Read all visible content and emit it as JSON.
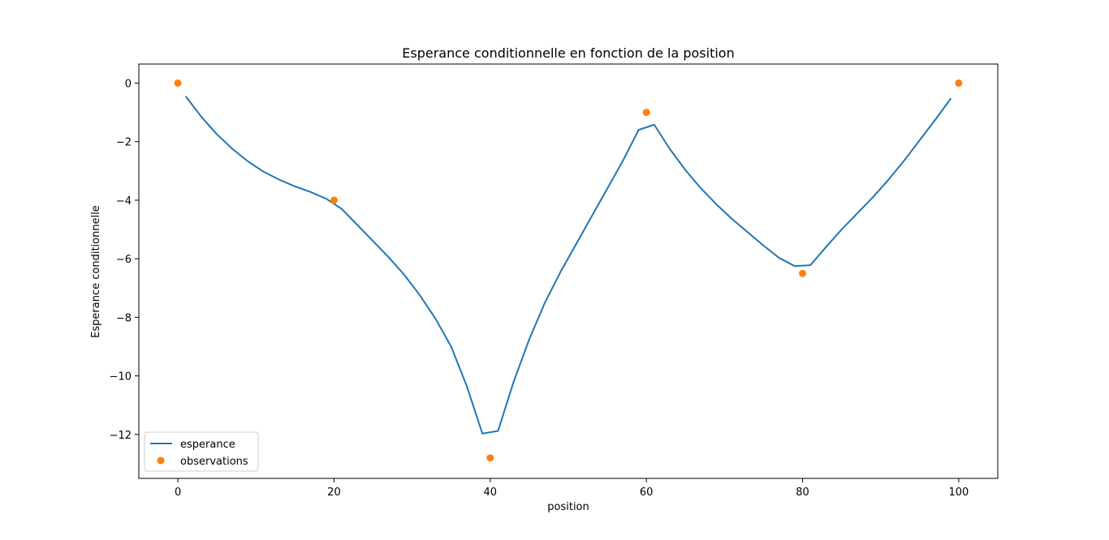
{
  "chart_data": {
    "type": "line",
    "title": "Esperance conditionnelle en fonction de la position",
    "xlabel": "position",
    "ylabel": "Esperance conditionnelle",
    "xlim": [
      -5,
      105
    ],
    "ylim": [
      -13.5,
      0.65
    ],
    "xticks": [
      0,
      20,
      40,
      60,
      80,
      100
    ],
    "yticks": [
      0,
      -2,
      -4,
      -6,
      -8,
      -10,
      -12
    ],
    "xtick_labels": [
      "0",
      "20",
      "40",
      "60",
      "80",
      "100"
    ],
    "ytick_labels": [
      "0",
      "−2",
      "−4",
      "−6",
      "−8",
      "−10",
      "−12"
    ],
    "grid": false,
    "legend_position": "lower-left",
    "colors": {
      "esperance": "#1f77b4",
      "observations": "#ff7f0e"
    },
    "series": [
      {
        "name": "esperance",
        "style": "line",
        "points": [
          [
            1,
            -0.45
          ],
          [
            3,
            -1.15
          ],
          [
            5,
            -1.75
          ],
          [
            7,
            -2.25
          ],
          [
            9,
            -2.68
          ],
          [
            11,
            -3.03
          ],
          [
            13,
            -3.3
          ],
          [
            15,
            -3.53
          ],
          [
            17,
            -3.72
          ],
          [
            19,
            -3.95
          ],
          [
            21,
            -4.3
          ],
          [
            23,
            -4.85
          ],
          [
            25,
            -5.4
          ],
          [
            27,
            -5.95
          ],
          [
            29,
            -6.55
          ],
          [
            31,
            -7.25
          ],
          [
            33,
            -8.05
          ],
          [
            35,
            -9.0
          ],
          [
            37,
            -10.35
          ],
          [
            39,
            -11.97
          ],
          [
            41,
            -11.88
          ],
          [
            43,
            -10.2
          ],
          [
            45,
            -8.75
          ],
          [
            47,
            -7.5
          ],
          [
            49,
            -6.45
          ],
          [
            51,
            -5.5
          ],
          [
            53,
            -4.55
          ],
          [
            55,
            -3.6
          ],
          [
            57,
            -2.65
          ],
          [
            59,
            -1.6
          ],
          [
            61,
            -1.42
          ],
          [
            63,
            -2.25
          ],
          [
            65,
            -2.97
          ],
          [
            67,
            -3.6
          ],
          [
            69,
            -4.15
          ],
          [
            71,
            -4.65
          ],
          [
            73,
            -5.1
          ],
          [
            75,
            -5.55
          ],
          [
            77,
            -5.97
          ],
          [
            79,
            -6.25
          ],
          [
            81,
            -6.22
          ],
          [
            83,
            -5.6
          ],
          [
            85,
            -5.0
          ],
          [
            87,
            -4.45
          ],
          [
            89,
            -3.9
          ],
          [
            91,
            -3.3
          ],
          [
            93,
            -2.65
          ],
          [
            95,
            -1.95
          ],
          [
            97,
            -1.25
          ],
          [
            99,
            -0.52
          ]
        ]
      },
      {
        "name": "observations",
        "style": "scatter",
        "points": [
          [
            0,
            0
          ],
          [
            20,
            -4
          ],
          [
            40,
            -12.8
          ],
          [
            60,
            -1
          ],
          [
            80,
            -6.5
          ],
          [
            100,
            0
          ]
        ]
      }
    ]
  }
}
